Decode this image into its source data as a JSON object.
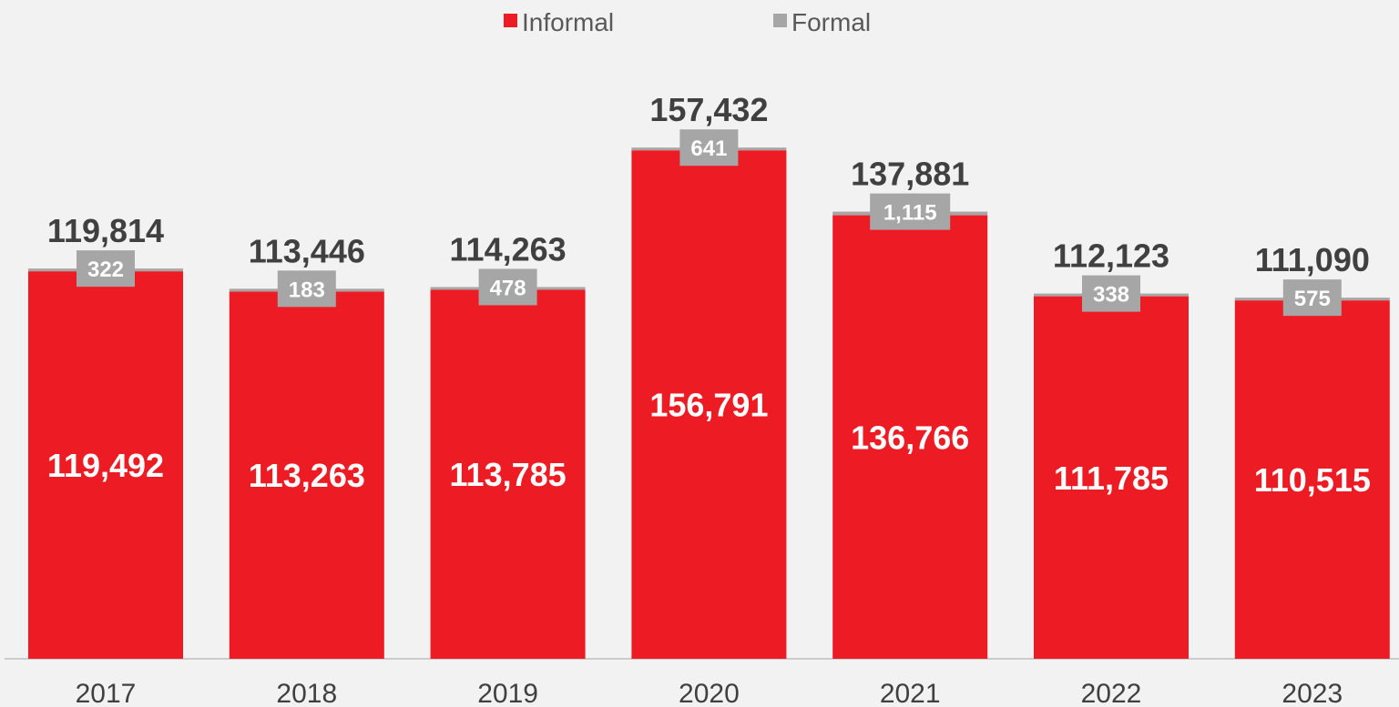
{
  "chart_data": {
    "type": "bar",
    "stacked": true,
    "categories": [
      "2017",
      "2018",
      "2019",
      "2020",
      "2021",
      "2022",
      "2023"
    ],
    "series": [
      {
        "name": "Informal",
        "color": "#ed1c24",
        "values": [
          119492,
          113263,
          113785,
          156791,
          136766,
          111785,
          110515
        ],
        "labels": [
          "119,492",
          "113,263",
          "113,785",
          "156,791",
          "136,766",
          "111,785",
          "110,515"
        ]
      },
      {
        "name": "Formal",
        "color": "#a6a6a6",
        "values": [
          322,
          183,
          478,
          641,
          1115,
          338,
          575
        ],
        "labels": [
          "322",
          "183",
          "478",
          "641",
          "1,115",
          "338",
          "575"
        ]
      }
    ],
    "totals": [
      119814,
      113446,
      114263,
      157432,
      137881,
      112123,
      111090
    ],
    "total_labels": [
      "119,814",
      "113,446",
      "114,263",
      "157,432",
      "137,881",
      "112,123",
      "111,090"
    ],
    "ylim": [
      0,
      200000
    ],
    "legend": "top-center",
    "grid": false,
    "title": "",
    "xlabel": "",
    "ylabel": ""
  }
}
